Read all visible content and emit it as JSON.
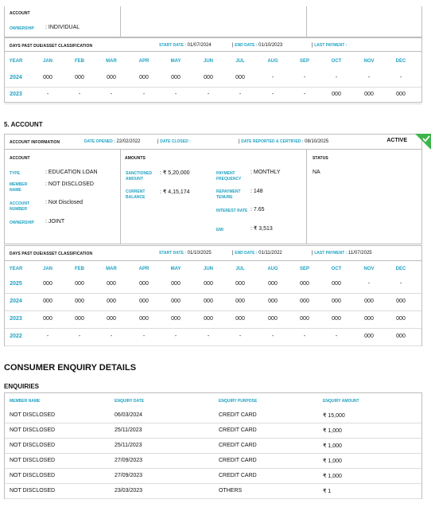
{
  "top": {
    "account_label": "ACCOUNT",
    "ownership_label": "OWNERSHIP",
    "ownership_value": "INDIVIDUAL",
    "dpd_label": "DAYS PAST DUE/ASSET CLASSIFICATION",
    "start_label": "START DATE :",
    "start_value": "01/07/2024",
    "end_label": "END DATE :",
    "end_value": "01/10/2023",
    "last_payment_label": "LAST PAYMENT :",
    "last_payment_value": "",
    "months": [
      "YEAR",
      "JAN",
      "FEB",
      "MAR",
      "APR",
      "MAY",
      "JUN",
      "JUL",
      "AUG",
      "SEP",
      "OCT",
      "NOV",
      "DEC"
    ],
    "rows": [
      {
        "year": "2024",
        "vals": [
          "000",
          "000",
          "000",
          "000",
          "000",
          "000",
          "000",
          "-",
          "-",
          "-",
          "-",
          "-"
        ]
      },
      {
        "year": "2023",
        "vals": [
          "-",
          "-",
          "-",
          "-",
          "-",
          "-",
          "-",
          "-",
          "-",
          "000",
          "000",
          "000"
        ]
      }
    ]
  },
  "account5": {
    "heading": "5. ACCOUNT",
    "info_label": "ACCOUNT INFORMATION",
    "opened_label": "DATE OPENED :",
    "opened_value": "22/02/2022",
    "closed_label": "DATE CLOSED :",
    "closed_value": "",
    "reported_label": "DATE REPORTED & CERTIFIED :",
    "reported_value": "08/10/2025",
    "status_badge": "ACTIVE",
    "col_account": "ACCOUNT",
    "col_amounts": "AMOUNTS",
    "col_status": "STATUS",
    "type_label": "TYPE",
    "type_value": "EDUCATION LOAN",
    "member_label": "MEMBER NAME",
    "member_value": "NOT DISCLOSED",
    "accno_label": "ACCOUNT NUMBER",
    "accno_value": "Not Disclosed",
    "own_label": "OWNERSHIP",
    "own_value": "JOINT",
    "sanc_label": "SANCTIONED AMOUNT",
    "sanc_value": "₹ 5,20,000",
    "cur_label": "CURRENT BALANCE",
    "cur_value": "₹ 4,15,174",
    "freq_label": "PAYMENT FREQUENCY",
    "freq_value": "MONTHLY",
    "tenure_label": "REPAYMENT TENURE",
    "tenure_value": "148",
    "rate_label": "INTEREST RATE",
    "rate_value": "7.65",
    "emi_label": "EMI",
    "emi_value": "₹ 3,513",
    "status_value": "NA",
    "dpd_label": "DAYS PAST DUE/ASSET CLASSIFICATION",
    "start_label": "START DATE :",
    "start_value": "01/10/2025",
    "end_label": "END DATE :",
    "end_value": "01/11/2022",
    "last_payment_label": "LAST PAYMENT :",
    "last_payment_value": "11/07/2025",
    "rows": [
      {
        "year": "2025",
        "vals": [
          "000",
          "000",
          "000",
          "000",
          "000",
          "000",
          "000",
          "000",
          "000",
          "000",
          "-",
          "-"
        ]
      },
      {
        "year": "2024",
        "vals": [
          "000",
          "000",
          "000",
          "000",
          "000",
          "000",
          "000",
          "000",
          "000",
          "000",
          "000",
          "000"
        ]
      },
      {
        "year": "2023",
        "vals": [
          "000",
          "000",
          "000",
          "000",
          "000",
          "000",
          "000",
          "000",
          "000",
          "000",
          "000",
          "000"
        ]
      },
      {
        "year": "2022",
        "vals": [
          "-",
          "-",
          "-",
          "-",
          "-",
          "-",
          "-",
          "-",
          "-",
          "-",
          "000",
          "000"
        ]
      }
    ]
  },
  "enquiry": {
    "heading": "CONSUMER ENQUIRY DETAILS",
    "sub": "ENQUIRIES",
    "headers": [
      "MEMBER NAME",
      "ENQUIRY DATE",
      "ENQUIRY PURPOSE",
      "ENQUIRY AMOUNT"
    ],
    "rows": [
      [
        "NOT DISCLOSED",
        "06/03/2024",
        "CREDIT CARD",
        "₹ 15,000"
      ],
      [
        "NOT DISCLOSED",
        "25/11/2023",
        "CREDIT CARD",
        "₹ 1,000"
      ],
      [
        "NOT DISCLOSED",
        "25/11/2023",
        "CREDIT CARD",
        "₹ 1,000"
      ],
      [
        "NOT DISCLOSED",
        "27/09/2023",
        "CREDIT CARD",
        "₹ 1,000"
      ],
      [
        "NOT DISCLOSED",
        "27/09/2023",
        "CREDIT CARD",
        "₹ 1,000"
      ],
      [
        "NOT DISCLOSED",
        "23/03/2023",
        "OTHERS",
        "₹ 1"
      ]
    ]
  },
  "colors": {
    "accent": "#1fa3c4",
    "badge": "#3cb54a",
    "border": "#bdbdbd"
  }
}
